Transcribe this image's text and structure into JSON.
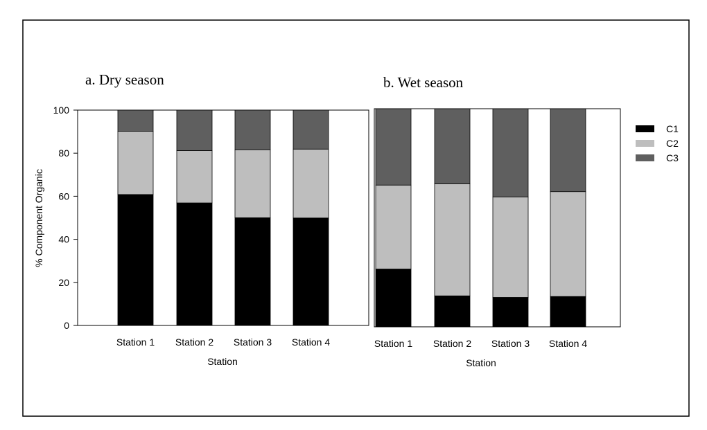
{
  "chart_data": [
    {
      "type": "bar",
      "stacked": true,
      "title": "a. Dry season",
      "xlabel": "Station",
      "ylabel": "% Component Organic",
      "ylim": [
        0,
        100
      ],
      "yticks": [
        0,
        20,
        40,
        60,
        80,
        100
      ],
      "categories": [
        "Station 1",
        "Station 2",
        "Station 3",
        "Station 4"
      ],
      "series": [
        {
          "name": "C1",
          "values": [
            60.8,
            56.9,
            50.0,
            49.9
          ]
        },
        {
          "name": "C2",
          "values": [
            29.4,
            24.3,
            31.6,
            32.0
          ]
        },
        {
          "name": "C3",
          "values": [
            9.8,
            18.8,
            18.4,
            18.1
          ]
        }
      ]
    },
    {
      "type": "bar",
      "stacked": true,
      "title": "b. Wet season",
      "xlabel": "Station",
      "ylabel": "",
      "ylim": [
        0,
        100
      ],
      "categories": [
        "Station 1",
        "Station 2",
        "Station 3",
        "Station 4"
      ],
      "series": [
        {
          "name": "C1",
          "values": [
            26.5,
            14.2,
            13.5,
            13.9
          ]
        },
        {
          "name": "C2",
          "values": [
            38.5,
            51.4,
            46.0,
            48.1
          ]
        },
        {
          "name": "C3",
          "values": [
            35.0,
            34.4,
            40.5,
            38.0
          ]
        }
      ]
    }
  ],
  "legend": {
    "placement": "right",
    "items": [
      {
        "name": "C1",
        "color": "#000000"
      },
      {
        "name": "C2",
        "color": "#bebebe"
      },
      {
        "name": "C3",
        "color": "#5f5f5f"
      }
    ]
  }
}
